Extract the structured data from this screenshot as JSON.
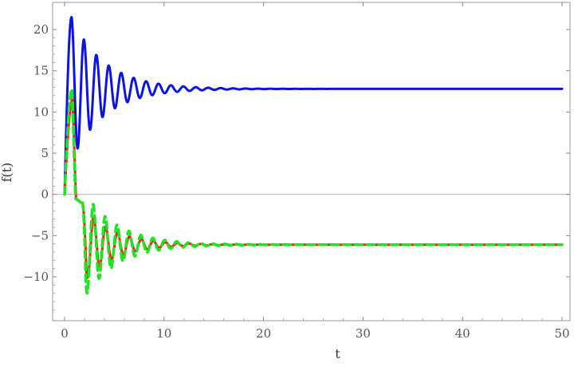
{
  "chart_data": {
    "type": "line",
    "title": "",
    "xlabel": "t",
    "ylabel": "f(t)",
    "xlim": [
      0,
      50
    ],
    "ylim": [
      -15,
      23
    ],
    "x_ticks": [
      {
        "value": 0,
        "label": "0"
      },
      {
        "value": 10,
        "label": "10"
      },
      {
        "value": 20,
        "label": "20"
      },
      {
        "value": 30,
        "label": "30"
      },
      {
        "value": 40,
        "label": "40"
      },
      {
        "value": 50,
        "label": "50"
      }
    ],
    "y_ticks": [
      {
        "value": 20,
        "label": "20"
      },
      {
        "value": 15,
        "label": "15"
      },
      {
        "value": 10,
        "label": "10"
      },
      {
        "value": 5,
        "label": "5"
      },
      {
        "value": 0,
        "label": "0"
      },
      {
        "value": -5,
        "label": "−5"
      },
      {
        "value": -10,
        "label": "−10"
      }
    ],
    "zero_line": true,
    "grid": false,
    "legend": "none",
    "series": [
      {
        "color": "#0a14e6",
        "style": "solid",
        "width": 3,
        "model": {
          "equilibrium": 12.8,
          "start": 0,
          "amplitude": 20,
          "decay": 0.3,
          "period": 1.25,
          "rise_end": 0.7
        },
        "peaks": [
          [
            0.7,
            21.5
          ],
          [
            2.2,
            20.8
          ],
          [
            3.5,
            19.5
          ],
          [
            4.5,
            17.7
          ],
          [
            5.4,
            16.6
          ],
          [
            6.3,
            15.6
          ],
          [
            7.1,
            14.9
          ],
          [
            50,
            12.8
          ]
        ],
        "troughs": [
          [
            1.8,
            1.5
          ],
          [
            3.1,
            3.8
          ],
          [
            4.0,
            6.5
          ],
          [
            5.0,
            8.0
          ],
          [
            5.9,
            9.5
          ],
          [
            6.8,
            10.5
          ],
          [
            50,
            12.8
          ]
        ]
      },
      {
        "color": "#ff1a1a",
        "style": "solid",
        "width": 3,
        "model": {
          "equilibrium": -6.1,
          "start": 0,
          "amplitude": 6.5,
          "decay": 0.33,
          "period": 1.2,
          "rise_end": 0.8
        },
        "peaks": [
          [
            0.8,
            11.5
          ],
          [
            2.5,
            -1.0
          ],
          [
            3.5,
            -2.0
          ],
          [
            50,
            -6.1
          ]
        ],
        "troughs": [
          [
            2.2,
            -11.0
          ],
          [
            3.2,
            -11.2
          ],
          [
            4.2,
            -9.5
          ],
          [
            50,
            -6.1
          ]
        ]
      },
      {
        "color": "#1ee61e",
        "style": "dashed",
        "width": 3.5,
        "model": {
          "equilibrium": -6.1,
          "start": 0,
          "amplitude": 7.5,
          "decay": 0.3,
          "period": 1.2,
          "rise_end": 0.75
        },
        "peaks": [
          [
            0.75,
            12.8
          ],
          [
            2.6,
            -0.8
          ],
          [
            3.6,
            -1.7
          ],
          [
            50,
            -6.1
          ]
        ],
        "troughs": [
          [
            2.3,
            -13.2
          ],
          [
            3.3,
            -13.0
          ],
          [
            4.3,
            -11.0
          ],
          [
            50,
            -6.1
          ]
        ]
      }
    ]
  }
}
